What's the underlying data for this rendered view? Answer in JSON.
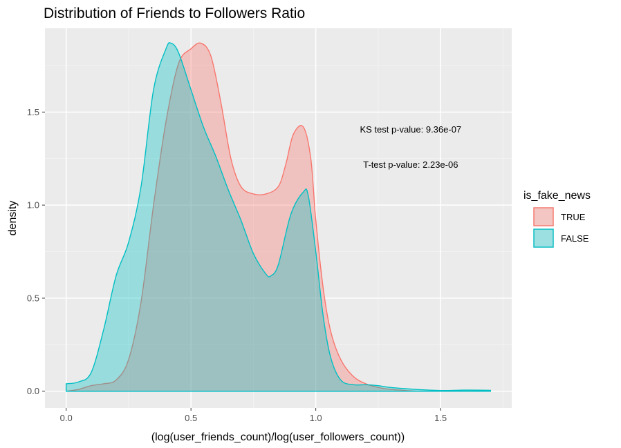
{
  "chart_data": {
    "type": "area",
    "title": "Distribution of Friends to Followers Ratio",
    "xlabel": "(log(user_friends_count)/log(user_followers_count))",
    "ylabel": "density",
    "xlim": [
      -0.085,
      1.785
    ],
    "ylim": [
      -0.09,
      1.95
    ],
    "x_ticks": [
      0.0,
      0.5,
      1.0,
      1.5
    ],
    "x_tick_labels": [
      "0.0",
      "0.5",
      "1.0",
      "1.5"
    ],
    "y_ticks": [
      0.0,
      0.5,
      1.0,
      1.5
    ],
    "y_tick_labels": [
      "0.0",
      "0.5",
      "1.0",
      "1.5"
    ],
    "grid": true,
    "legend": {
      "title": "is_fake_news",
      "position": "right"
    },
    "annotations": [
      {
        "text": "KS test p-value: 9.36e-07",
        "x": 1.38,
        "y": 1.39
      },
      {
        "text": "T-test p-value: 2.23e-06",
        "x": 1.38,
        "y": 1.2
      }
    ],
    "series": [
      {
        "name": "TRUE",
        "color": "#F8766D",
        "x": [
          0.0,
          0.05,
          0.1,
          0.15,
          0.2,
          0.25,
          0.3,
          0.35,
          0.4,
          0.45,
          0.5,
          0.54,
          0.58,
          0.62,
          0.66,
          0.7,
          0.75,
          0.8,
          0.85,
          0.88,
          0.91,
          0.95,
          0.98,
          1.0,
          1.03,
          1.06,
          1.1,
          1.15,
          1.2,
          1.25,
          1.3,
          1.35,
          1.4
        ],
        "values": [
          0.0,
          0.01,
          0.03,
          0.04,
          0.06,
          0.17,
          0.48,
          1.0,
          1.45,
          1.76,
          1.84,
          1.87,
          1.8,
          1.55,
          1.25,
          1.1,
          1.06,
          1.06,
          1.1,
          1.22,
          1.38,
          1.42,
          1.25,
          0.92,
          0.55,
          0.32,
          0.17,
          0.08,
          0.04,
          0.02,
          0.01,
          0.005,
          0.0
        ]
      },
      {
        "name": "FALSE",
        "color": "#00BFC4",
        "x": [
          0.0,
          0.05,
          0.1,
          0.15,
          0.2,
          0.25,
          0.3,
          0.35,
          0.4,
          0.42,
          0.45,
          0.5,
          0.55,
          0.6,
          0.65,
          0.7,
          0.75,
          0.8,
          0.82,
          0.85,
          0.9,
          0.95,
          0.97,
          1.0,
          1.03,
          1.06,
          1.1,
          1.15,
          1.2,
          1.25,
          1.3,
          1.4,
          1.5,
          1.6,
          1.7
        ],
        "values": [
          0.04,
          0.05,
          0.1,
          0.33,
          0.62,
          0.8,
          1.1,
          1.62,
          1.84,
          1.87,
          1.82,
          1.62,
          1.42,
          1.26,
          1.08,
          0.92,
          0.74,
          0.63,
          0.62,
          0.68,
          0.95,
          1.07,
          1.05,
          0.75,
          0.4,
          0.18,
          0.06,
          0.035,
          0.035,
          0.03,
          0.02,
          0.01,
          0.004,
          0.006,
          0.005
        ]
      }
    ]
  }
}
